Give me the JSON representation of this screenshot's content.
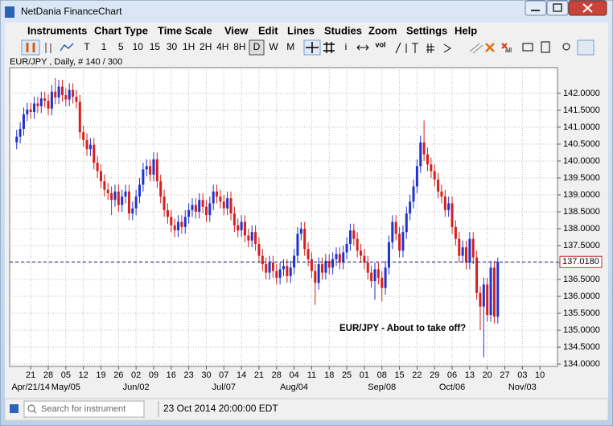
{
  "window": {
    "title": "NetDania FinanceChart"
  },
  "menu": [
    "Instruments",
    "Chart Type",
    "Time Scale",
    "View",
    "Edit",
    "Lines",
    "Studies",
    "Zoom",
    "Settings",
    "Help"
  ],
  "toolbar": {
    "intervals": [
      "T",
      "1",
      "5",
      "10",
      "15",
      "30",
      "1H",
      "2H",
      "4H",
      "8H",
      "D",
      "W",
      "M"
    ],
    "selected": "D",
    "info": "i",
    "volume": "vol",
    "delete_all": "all"
  },
  "chart_data": {
    "type": "candlestick",
    "subtitle": "EUR/JPY , Daily, # 140 / 300",
    "annotation": "EUR/JPY - About to take off?",
    "up_color": "#2233cc",
    "down_color": "#d42020",
    "grid": true,
    "open": [
      140.55,
      140.72,
      140.95,
      141.38,
      141.52,
      141.45,
      141.7,
      141.62,
      141.85,
      141.78,
      141.55,
      142.05,
      141.88,
      142.2,
      141.95,
      141.82,
      142.1,
      141.9,
      141.75,
      140.85,
      140.62,
      140.35,
      140.48,
      139.95,
      139.7,
      139.4,
      139.15,
      139.05,
      138.85,
      139.1,
      138.7,
      138.95,
      139.1,
      138.45,
      138.6,
      138.95,
      139.3,
      139.75,
      139.85,
      139.6,
      140.05,
      139.4,
      138.95,
      138.55,
      138.35,
      138.1,
      137.95,
      138.2,
      138.05,
      138.35,
      138.55,
      138.7,
      138.5,
      138.85,
      138.65,
      138.4,
      138.75,
      139.1,
      138.95,
      138.8,
      138.6,
      138.9,
      138.45,
      138.1,
      137.95,
      138.2,
      137.8,
      137.65,
      137.9,
      137.55,
      137.2,
      136.95,
      136.7,
      137.0,
      136.75,
      136.55,
      136.8,
      136.9,
      136.6,
      136.85,
      137.2,
      137.85,
      138.0,
      137.4,
      137.1,
      136.75,
      136.4,
      136.95,
      136.7,
      137.05,
      136.85,
      137.1,
      137.25,
      137.0,
      137.3,
      137.55,
      137.95,
      137.7,
      137.35,
      137.2,
      137.0,
      136.7,
      136.45,
      136.8,
      136.55,
      136.25,
      136.85,
      137.6,
      138.2,
      137.85,
      137.35,
      137.9,
      138.45,
      138.8,
      139.25,
      139.85,
      140.55,
      140.2,
      139.9,
      139.7,
      139.45,
      139.1,
      138.95,
      138.55,
      138.75,
      138.05,
      137.7,
      137.2,
      137.45,
      137.0,
      137.7,
      137.15,
      136.1,
      135.7,
      136.35,
      135.45,
      136.85,
      135.4
    ],
    "high": [
      140.92,
      141.15,
      141.58,
      141.72,
      141.72,
      141.9,
      141.9,
      142.05,
      142.05,
      141.98,
      142.25,
      142.45,
      142.4,
      142.4,
      142.15,
      142.3,
      142.3,
      142.1,
      141.95,
      141.05,
      140.82,
      140.68,
      140.68,
      140.15,
      139.9,
      139.6,
      139.35,
      139.25,
      139.3,
      139.3,
      139.15,
      139.3,
      139.3,
      138.8,
      139.15,
      139.5,
      139.95,
      140.05,
      140.05,
      140.25,
      140.25,
      139.6,
      139.15,
      138.75,
      138.55,
      138.3,
      138.4,
      138.4,
      138.55,
      138.75,
      138.9,
      138.9,
      139.05,
      139.05,
      138.85,
      138.95,
      139.3,
      139.3,
      139.15,
      139.0,
      139.1,
      139.1,
      138.65,
      138.3,
      138.4,
      138.4,
      138.0,
      138.1,
      138.1,
      137.75,
      137.4,
      137.15,
      137.2,
      137.2,
      136.95,
      137.0,
      137.1,
      137.1,
      137.05,
      137.4,
      138.05,
      138.2,
      138.2,
      137.6,
      137.3,
      136.95,
      137.15,
      137.15,
      137.25,
      137.25,
      137.3,
      137.45,
      137.45,
      137.5,
      137.75,
      138.15,
      138.15,
      137.9,
      137.55,
      137.4,
      137.2,
      136.9,
      137.0,
      137.0,
      136.75,
      137.05,
      137.8,
      138.4,
      138.4,
      138.05,
      138.1,
      138.65,
      139.0,
      139.45,
      140.05,
      140.75,
      141.2,
      140.4,
      140.1,
      139.9,
      139.65,
      139.3,
      139.15,
      138.95,
      138.95,
      138.25,
      137.9,
      137.65,
      137.65,
      137.9,
      137.9,
      137.35,
      136.3,
      136.55,
      136.55,
      137.05,
      137.05,
      137.15
    ],
    "low": [
      140.35,
      140.52,
      140.75,
      141.18,
      141.25,
      141.25,
      141.42,
      141.42,
      141.58,
      141.35,
      141.35,
      141.68,
      141.68,
      141.75,
      141.62,
      141.62,
      141.7,
      141.55,
      140.65,
      140.42,
      140.15,
      140.15,
      139.75,
      139.5,
      139.2,
      138.95,
      138.85,
      138.4,
      138.65,
      138.5,
      138.5,
      138.75,
      138.25,
      138.25,
      138.4,
      138.75,
      139.1,
      139.55,
      139.4,
      139.4,
      139.2,
      138.75,
      138.35,
      138.15,
      137.9,
      137.75,
      137.75,
      137.85,
      137.85,
      138.15,
      138.35,
      138.3,
      138.3,
      138.45,
      138.2,
      138.2,
      138.55,
      138.75,
      138.6,
      138.4,
      138.4,
      138.25,
      137.9,
      137.75,
      137.75,
      137.6,
      137.45,
      137.45,
      137.35,
      137.0,
      136.75,
      136.5,
      136.5,
      136.55,
      136.35,
      136.35,
      136.6,
      136.4,
      136.4,
      136.65,
      137.0,
      137.65,
      137.2,
      136.9,
      136.55,
      135.75,
      136.2,
      136.5,
      136.5,
      136.65,
      136.65,
      136.9,
      136.8,
      136.8,
      137.1,
      137.35,
      137.5,
      137.15,
      137.0,
      136.8,
      136.5,
      136.25,
      135.9,
      136.35,
      135.85,
      136.05,
      136.65,
      137.4,
      137.65,
      137.15,
      137.15,
      137.7,
      138.25,
      138.6,
      139.05,
      139.65,
      140.0,
      139.7,
      139.5,
      139.25,
      138.9,
      138.75,
      138.35,
      138.35,
      137.85,
      137.5,
      137.0,
      137.0,
      136.8,
      136.8,
      136.95,
      135.9,
      135.0,
      134.2,
      135.25,
      135.25,
      135.2,
      135.2
    ],
    "close": [
      140.72,
      140.95,
      141.38,
      141.52,
      141.45,
      141.7,
      141.62,
      141.85,
      141.78,
      141.55,
      142.05,
      141.88,
      142.2,
      141.95,
      141.82,
      142.1,
      141.9,
      141.75,
      140.85,
      140.62,
      140.35,
      140.48,
      139.95,
      139.7,
      139.4,
      139.15,
      139.05,
      138.85,
      139.1,
      138.7,
      138.95,
      139.1,
      138.45,
      138.6,
      138.95,
      139.3,
      139.75,
      139.85,
      139.6,
      140.05,
      139.4,
      138.95,
      138.55,
      138.35,
      138.1,
      137.95,
      138.2,
      138.05,
      138.35,
      138.55,
      138.7,
      138.5,
      138.85,
      138.65,
      138.4,
      138.75,
      139.1,
      138.95,
      138.8,
      138.6,
      138.9,
      138.45,
      138.1,
      137.95,
      138.2,
      137.8,
      137.65,
      137.9,
      137.55,
      137.2,
      136.95,
      136.7,
      137.0,
      136.75,
      136.55,
      136.8,
      136.9,
      136.6,
      136.85,
      137.2,
      137.85,
      138.0,
      137.4,
      137.1,
      136.75,
      136.4,
      136.95,
      136.7,
      137.05,
      136.85,
      137.1,
      137.25,
      137.0,
      137.3,
      137.55,
      137.95,
      137.7,
      137.35,
      137.2,
      137.0,
      136.7,
      136.45,
      136.8,
      136.55,
      136.25,
      136.85,
      137.6,
      138.2,
      137.85,
      137.35,
      137.9,
      138.45,
      138.8,
      139.25,
      139.85,
      140.55,
      140.2,
      139.9,
      139.7,
      139.45,
      139.1,
      138.95,
      138.55,
      138.75,
      138.05,
      137.7,
      137.2,
      137.45,
      137.0,
      137.7,
      137.15,
      136.1,
      135.7,
      136.35,
      135.45,
      136.85,
      135.4,
      137.02
    ],
    "current": {
      "value": 137.018,
      "label": "137.0180"
    },
    "ylim": [
      133.93,
      142.76
    ],
    "yticks": [
      {
        "value": 134,
        "label": "134.0000"
      },
      {
        "value": 134.5,
        "label": "134.5000"
      },
      {
        "value": 135,
        "label": "135.0000"
      },
      {
        "value": 135.5,
        "label": "135.5000"
      },
      {
        "value": 136,
        "label": "136.0000"
      },
      {
        "value": 136.5,
        "label": "136.5000"
      },
      {
        "value": 137,
        "label": "137.0000"
      },
      {
        "value": 137.5,
        "label": "137.5000"
      },
      {
        "value": 138,
        "label": "138.0000"
      },
      {
        "value": 138.5,
        "label": "138.5000"
      },
      {
        "value": 139,
        "label": "139.0000"
      },
      {
        "value": 139.5,
        "label": "139.5000"
      },
      {
        "value": 140,
        "label": "140.0000"
      },
      {
        "value": 140.5,
        "label": "140.5000"
      },
      {
        "value": 141,
        "label": "141.0000"
      },
      {
        "value": 141.5,
        "label": "141.5000"
      },
      {
        "value": 142,
        "label": "142.0000"
      }
    ],
    "xlim": [
      -2,
      154
    ],
    "xticks": [
      {
        "value": 4,
        "label": "21"
      },
      {
        "value": 9,
        "label": "28"
      },
      {
        "value": 14,
        "label": "05"
      },
      {
        "value": 19,
        "label": "12"
      },
      {
        "value": 24,
        "label": "19"
      },
      {
        "value": 29,
        "label": "26"
      },
      {
        "value": 34,
        "label": "02"
      },
      {
        "value": 39,
        "label": "09"
      },
      {
        "value": 44,
        "label": "16"
      },
      {
        "value": 49,
        "label": "23"
      },
      {
        "value": 54,
        "label": "30"
      },
      {
        "value": 59,
        "label": "07"
      },
      {
        "value": 64,
        "label": "14"
      },
      {
        "value": 69,
        "label": "21"
      },
      {
        "value": 74,
        "label": "28"
      },
      {
        "value": 79,
        "label": "04"
      },
      {
        "value": 84,
        "label": "11"
      },
      {
        "value": 89,
        "label": "18"
      },
      {
        "value": 94,
        "label": "25"
      },
      {
        "value": 99,
        "label": "01"
      },
      {
        "value": 104,
        "label": "08"
      },
      {
        "value": 109,
        "label": "15"
      },
      {
        "value": 114,
        "label": "22"
      },
      {
        "value": 119,
        "label": "29"
      },
      {
        "value": 124,
        "label": "06"
      },
      {
        "value": 129,
        "label": "13"
      },
      {
        "value": 134,
        "label": "20"
      },
      {
        "value": 139,
        "label": "27"
      },
      {
        "value": 144,
        "label": "03"
      },
      {
        "value": 149,
        "label": "10"
      }
    ],
    "xticks_major": [
      {
        "value": 4,
        "label": "Apr/21/14"
      },
      {
        "value": 14,
        "label": "May/05"
      },
      {
        "value": 34,
        "label": "Jun/02"
      },
      {
        "value": 59,
        "label": "Jul/07"
      },
      {
        "value": 79,
        "label": "Aug/04"
      },
      {
        "value": 104,
        "label": "Sep/08"
      },
      {
        "value": 124,
        "label": "Oct/06"
      },
      {
        "value": 144,
        "label": "Nov/03"
      }
    ]
  },
  "status": {
    "search_placeholder": "Search for instrument",
    "datetime": "23 Oct 2014 20:00:00 EDT"
  }
}
